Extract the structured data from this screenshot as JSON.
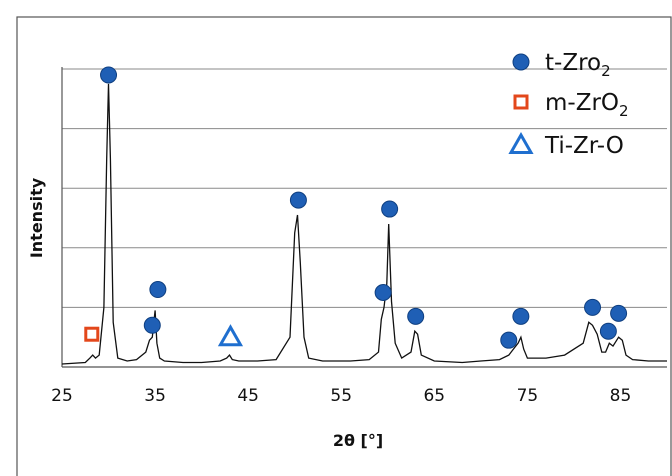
{
  "chart_data": {
    "type": "line",
    "title": "",
    "xlabel": "2θ [°]",
    "ylabel": "Intensity",
    "xlim": [
      25,
      90
    ],
    "ylim": [
      0,
      100
    ],
    "xticks": [
      25,
      35,
      45,
      55,
      65,
      75,
      85
    ],
    "grid": "horizontal",
    "legend_position": "top-right",
    "series": [
      {
        "x": [
          25,
          27.5,
          28.0,
          28.3,
          28.6,
          29.0,
          29.5,
          29.8,
          30.0,
          30.2,
          30.5,
          31.0,
          32,
          33,
          34.0,
          34.4,
          34.7,
          35.0,
          35.2,
          35.5,
          36.0,
          38,
          40,
          42,
          42.7,
          43.0,
          43.3,
          44,
          46,
          48,
          49.5,
          50.0,
          50.3,
          50.6,
          51.0,
          51.5,
          53,
          55,
          56,
          58,
          59.0,
          59.3,
          59.6,
          59.9,
          60.1,
          60.4,
          60.8,
          61.5,
          62.5,
          62.9,
          63.2,
          63.6,
          65,
          68,
          70,
          72,
          73.0,
          73.5,
          74.0,
          74.3,
          74.6,
          75.0,
          77,
          79,
          81.0,
          81.6,
          82.0,
          82.5,
          83.0,
          83.4,
          83.8,
          84.2,
          84.8,
          85.2,
          85.6,
          86.3,
          88,
          90
        ],
        "y": [
          1,
          1.5,
          3,
          4,
          3,
          4,
          20,
          70,
          95,
          70,
          15,
          3,
          2,
          2.5,
          5,
          9,
          10,
          19,
          8,
          3,
          2,
          1.5,
          1.5,
          2,
          3,
          4,
          2.5,
          2,
          2,
          2.5,
          10,
          45,
          51,
          35,
          10,
          3,
          2,
          2,
          2,
          2.5,
          5,
          16,
          20,
          28,
          48,
          22,
          8,
          3,
          5,
          12,
          11,
          4,
          2,
          1.5,
          2,
          2.5,
          4,
          6,
          8,
          10,
          6,
          3,
          3,
          4,
          8,
          15,
          14,
          11,
          5,
          5,
          8,
          7,
          10,
          9,
          4,
          2.5,
          2,
          2
        ]
      }
    ],
    "markers": [
      {
        "phase": "t-Zro2",
        "x": 30.0,
        "y": 98
      },
      {
        "phase": "t-Zro2",
        "x": 35.3,
        "y": 26
      },
      {
        "phase": "t-Zro2",
        "x": 34.7,
        "y": 14
      },
      {
        "phase": "t-Zro2",
        "x": 50.4,
        "y": 56
      },
      {
        "phase": "t-Zro2",
        "x": 60.2,
        "y": 53
      },
      {
        "phase": "t-Zro2",
        "x": 59.5,
        "y": 25
      },
      {
        "phase": "t-Zro2",
        "x": 63.0,
        "y": 17
      },
      {
        "phase": "t-Zro2",
        "x": 73.0,
        "y": 9
      },
      {
        "phase": "t-Zro2",
        "x": 74.3,
        "y": 17
      },
      {
        "phase": "t-Zro2",
        "x": 82.0,
        "y": 20
      },
      {
        "phase": "t-Zro2",
        "x": 83.7,
        "y": 12
      },
      {
        "phase": "t-Zro2",
        "x": 84.8,
        "y": 18
      },
      {
        "phase": "m-ZrO2",
        "x": 28.2,
        "y": 11
      },
      {
        "phase": "Ti-Zr-O",
        "x": 43.1,
        "y": 10
      }
    ],
    "legend": [
      {
        "label": "t-Zro",
        "sub": "2",
        "symbol": "circle",
        "color": "#1f5fb5"
      },
      {
        "label": "m-ZrO",
        "sub": "2",
        "symbol": "square",
        "color": "#e3471b"
      },
      {
        "label": "Ti-Zr-O",
        "sub": "",
        "symbol": "triangle",
        "color": "#1f6fcf"
      }
    ]
  }
}
